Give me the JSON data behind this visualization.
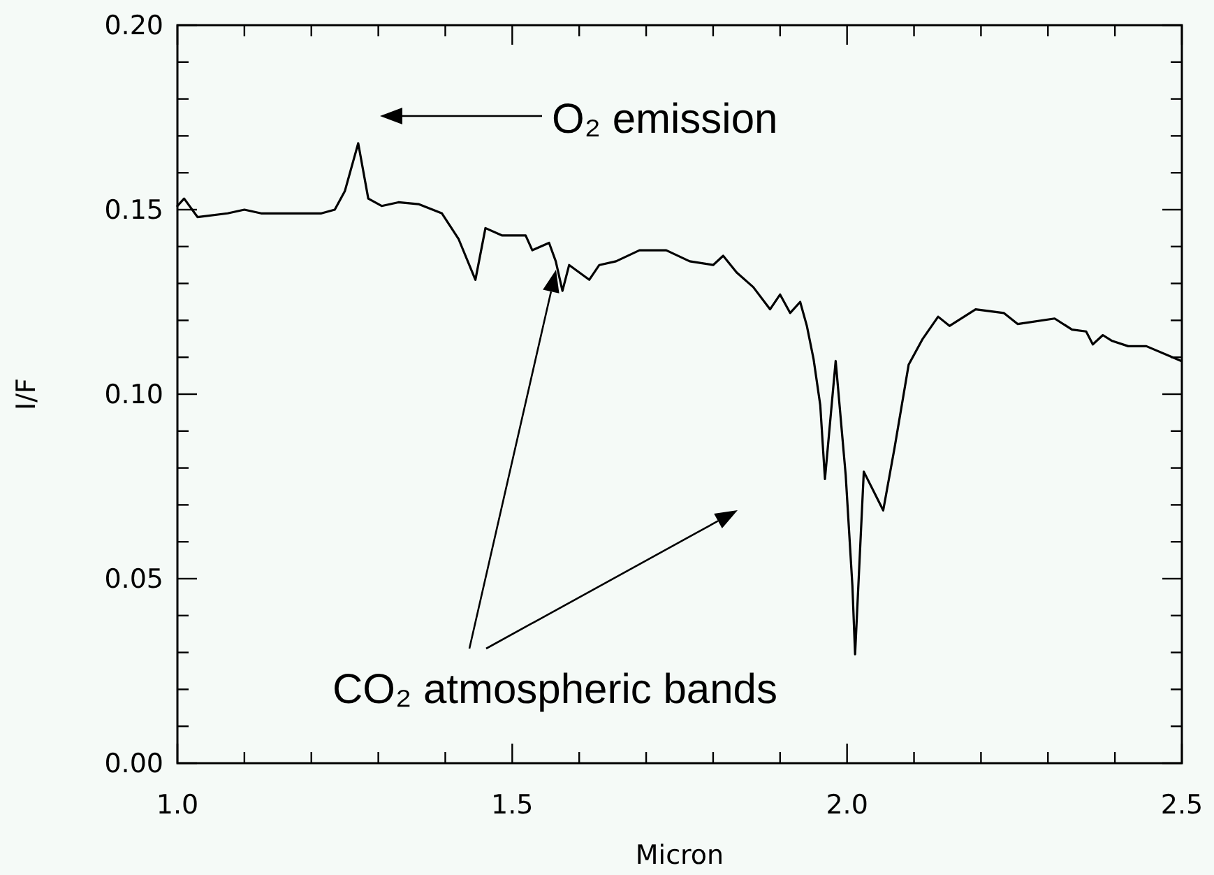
{
  "chart_data": {
    "type": "line",
    "xlabel": "Micron",
    "ylabel": "I/F",
    "x": [
      1.0,
      1.01,
      1.03,
      1.075,
      1.1,
      1.125,
      1.16,
      1.215,
      1.235,
      1.25,
      1.27,
      1.285,
      1.305,
      1.33,
      1.36,
      1.395,
      1.42,
      1.445,
      1.46,
      1.485,
      1.52,
      1.53,
      1.555,
      1.565,
      1.575,
      1.585,
      1.615,
      1.63,
      1.655,
      1.69,
      1.73,
      1.765,
      1.8,
      1.815,
      1.835,
      1.86,
      1.885,
      1.9,
      1.915,
      1.93,
      1.94,
      1.95,
      1.96,
      1.967,
      1.983,
      1.998,
      2.008,
      2.012,
      2.025,
      2.054,
      2.071,
      2.092,
      2.113,
      2.136,
      2.153,
      2.192,
      2.234,
      2.255,
      2.31,
      2.336,
      2.357,
      2.367,
      2.382,
      2.395,
      2.42,
      2.447,
      2.499
    ],
    "series": [
      {
        "color": "#000000",
        "values": [
          0.151,
          0.153,
          0.148,
          0.149,
          0.15,
          0.149,
          0.149,
          0.149,
          0.15,
          0.155,
          0.168,
          0.153,
          0.151,
          0.152,
          0.1515,
          0.149,
          0.142,
          0.131,
          0.145,
          0.143,
          0.143,
          0.139,
          0.141,
          0.136,
          0.128,
          0.135,
          0.131,
          0.135,
          0.136,
          0.139,
          0.139,
          0.136,
          0.135,
          0.1375,
          0.133,
          0.129,
          0.123,
          0.127,
          0.122,
          0.125,
          0.1185,
          0.1095,
          0.097,
          0.077,
          0.109,
          0.078,
          0.048,
          0.0295,
          0.079,
          0.0685,
          0.0855,
          0.108,
          0.115,
          0.121,
          0.1185,
          0.123,
          0.122,
          0.119,
          0.1205,
          0.1175,
          0.117,
          0.1135,
          0.116,
          0.1145,
          0.113,
          0.113,
          0.109
        ]
      }
    ],
    "xlim": [
      1.0,
      2.5
    ],
    "xticks": [
      {
        "value": 1.0,
        "label": "1.0"
      },
      {
        "value": 1.1,
        "label": null
      },
      {
        "value": 1.2,
        "label": null
      },
      {
        "value": 1.3,
        "label": null
      },
      {
        "value": 1.4,
        "label": null
      },
      {
        "value": 1.5,
        "label": "1.5"
      },
      {
        "value": 1.6,
        "label": null
      },
      {
        "value": 1.7,
        "label": null
      },
      {
        "value": 1.8,
        "label": null
      },
      {
        "value": 1.9,
        "label": null
      },
      {
        "value": 2.0,
        "label": "2.0"
      },
      {
        "value": 2.1,
        "label": null
      },
      {
        "value": 2.2,
        "label": null
      },
      {
        "value": 2.3,
        "label": null
      },
      {
        "value": 2.4,
        "label": null
      },
      {
        "value": 2.5,
        "label": "2.5"
      }
    ],
    "ylim": [
      0,
      0.2
    ],
    "yticks": [
      {
        "value": 0,
        "label": "0.00"
      },
      {
        "value": 0.01,
        "label": null
      },
      {
        "value": 0.02,
        "label": null
      },
      {
        "value": 0.03,
        "label": null
      },
      {
        "value": 0.04,
        "label": null
      },
      {
        "value": 0.05,
        "label": "0.05"
      },
      {
        "value": 0.06,
        "label": null
      },
      {
        "value": 0.07,
        "label": null
      },
      {
        "value": 0.08,
        "label": null
      },
      {
        "value": 0.09,
        "label": null
      },
      {
        "value": 0.1,
        "label": "0.10"
      },
      {
        "value": 0.11,
        "label": null
      },
      {
        "value": 0.12,
        "label": null
      },
      {
        "value": 0.13,
        "label": null
      },
      {
        "value": 0.14,
        "label": null
      },
      {
        "value": 0.15,
        "label": "0.15"
      },
      {
        "value": 0.16,
        "label": null
      },
      {
        "value": 0.17,
        "label": null
      },
      {
        "value": 0.18,
        "label": null
      },
      {
        "value": 0.19,
        "label": null
      },
      {
        "value": 0.2,
        "label": "0.20"
      }
    ],
    "grid": false,
    "marker": "none",
    "line_style": "solid",
    "annotations": [
      "O₂ emission",
      "CO₂ atmospheric bands"
    ]
  }
}
